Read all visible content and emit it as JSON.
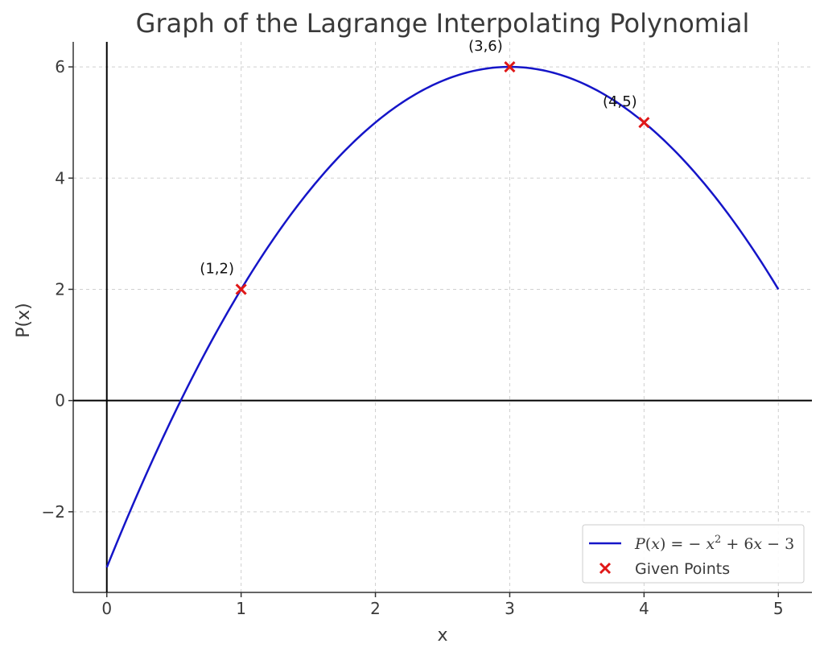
{
  "chart_data": {
    "type": "line",
    "title": "Graph of the Lagrange Interpolating Polynomial",
    "xlabel": "x",
    "ylabel": "P(x)",
    "xlim": [
      -0.25,
      5.25
    ],
    "ylim": [
      -3.45,
      6.45
    ],
    "x_ticks": [
      0,
      1,
      2,
      3,
      4,
      5
    ],
    "y_ticks": [
      -2,
      0,
      2,
      4,
      6
    ],
    "x_tick_labels": [
      "0",
      "1",
      "2",
      "3",
      "4",
      "5"
    ],
    "y_tick_labels": [
      "−2",
      "0",
      "2",
      "4",
      "6"
    ],
    "grid": true,
    "series": [
      {
        "name": "P(x) = − x² + 6x − 3",
        "kind": "line",
        "color": "#1515c8",
        "x_range": [
          0,
          5
        ],
        "coefficients": {
          "a": -1,
          "b": 6,
          "c": -3
        }
      },
      {
        "name": "Given Points",
        "kind": "scatter",
        "marker": "x",
        "color": "#e01818",
        "points": [
          {
            "x": 1,
            "y": 2,
            "label": "(1,2)"
          },
          {
            "x": 3,
            "y": 6,
            "label": "(3,6)"
          },
          {
            "x": 4,
            "y": 5,
            "label": "(4,5)"
          }
        ]
      }
    ],
    "legend": {
      "position": "lower-right",
      "entries": [
        {
          "label": "P(x) = − x² + 6x − 3",
          "math": {
            "base1": "P",
            "paren1": "(",
            "var1": "x",
            "paren2": ")",
            "eq": " = − ",
            "var2": "x",
            "exp": "2",
            "rest1": " + 6",
            "var3": "x",
            "rest2": " − 3"
          }
        },
        {
          "label": "Given Points"
        }
      ]
    }
  }
}
